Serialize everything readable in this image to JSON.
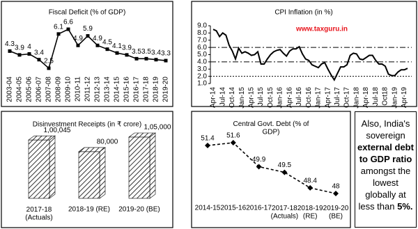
{
  "chart_data": [
    {
      "type": "line",
      "title": "Fiscal Deficit (% of GDP)",
      "categories": [
        "2003-04",
        "2004-05",
        "2005-06",
        "2006-07",
        "2007-08",
        "2008-09",
        "2009-10",
        "2010-11",
        "2011-12",
        "2012-13",
        "2013-14",
        "2014-15",
        "2015-16",
        "2016-17",
        "2017-18",
        "2018-19",
        "2019-20"
      ],
      "values": [
        4.3,
        3.9,
        4,
        3.4,
        2.5,
        6.1,
        6.6,
        4.9,
        5.9,
        4.9,
        4.5,
        4.1,
        3.9,
        3.5,
        3.5,
        3.4,
        3.3
      ],
      "color": "#000000",
      "marker": "square",
      "data_labels": true
    },
    {
      "type": "line",
      "title": "CPI Inflation (in %)",
      "annotation": "www.taxguru.in",
      "categories": [
        "Apr-14",
        null,
        null,
        "Jul-14",
        null,
        null,
        "Oct-14",
        null,
        null,
        "Jan-15",
        null,
        null,
        "Apr-15",
        null,
        null,
        "Jul-15",
        null,
        null,
        "Oct-15",
        null,
        null,
        "Jan-16",
        null,
        null,
        "Apr-16",
        null,
        null,
        "Jul-16",
        null,
        null,
        "Oct-16",
        null,
        null,
        "Jan-17",
        null,
        null,
        "Apr-17",
        null,
        null,
        "Jul-17",
        null,
        null,
        "Oct-17",
        null,
        null,
        "Jan-18",
        null,
        null,
        "Apr-18",
        null,
        null,
        "Jul-18",
        null,
        null,
        "Oct18",
        null,
        null,
        "Jan-19",
        null,
        null,
        "Apr-19",
        null
      ],
      "values": [
        8.5,
        8.3,
        7.5,
        8.0,
        7.7,
        6.3,
        5.5,
        4.4,
        5.9,
        5.2,
        5.4,
        5.2,
        4.9,
        5.0,
        5.4,
        3.7,
        3.7,
        4.4,
        5.0,
        5.4,
        5.6,
        5.7,
        5.2,
        4.8,
        5.5,
        5.8,
        5.8,
        6.1,
        5.1,
        4.4,
        4.2,
        3.6,
        3.4,
        3.2,
        3.7,
        3.9,
        3.0,
        2.2,
        1.5,
        2.4,
        3.3,
        3.3,
        3.6,
        4.9,
        5.2,
        5.1,
        4.4,
        4.3,
        4.6,
        4.9,
        4.9,
        4.2,
        3.7,
        3.7,
        3.4,
        2.3,
        2.1,
        2.1,
        2.6,
        2.9,
        2.9,
        3.1
      ],
      "color": "#000000",
      "ylim": [
        1,
        9
      ],
      "yticks": [
        {
          "value": 1,
          "label": "1.0"
        },
        {
          "value": 2,
          "label": "2.0"
        },
        {
          "value": 3,
          "label": "3.0"
        },
        {
          "value": 4,
          "label": "4.0"
        },
        {
          "value": 5,
          "label": "5.0"
        },
        {
          "value": 6,
          "label": "6.0"
        },
        {
          "value": 7,
          "label": "7.0"
        },
        {
          "value": 8,
          "label": "8.0"
        },
        {
          "value": 9,
          "label": "9.0"
        }
      ],
      "reference_lines": [
        6,
        4,
        2
      ],
      "reference_styles": [
        "dash-dot",
        "dash-dot",
        "dotted"
      ]
    },
    {
      "type": "bar",
      "title": "Disinvestment Receipts (in ₹ crore)",
      "categories": [
        "2017-18\n(Actuals)",
        "2018-19 (RE)",
        "2019-20 (BE)"
      ],
      "values": [
        100045,
        80000,
        105000
      ],
      "value_labels": [
        "1,00,045",
        "80,000",
        "1,05,000"
      ],
      "color": "#ffffff",
      "pattern": "hatch"
    },
    {
      "type": "line",
      "title": "Central Govt. Debt (% of\nGDP)",
      "categories": [
        "2014-15",
        "2015-16",
        "2016-17",
        "2017-18\n(Actuals)",
        "2018-19\n(RE)",
        "2019-20\n(BE)"
      ],
      "values": [
        51.4,
        51.6,
        49.9,
        49.5,
        48.4,
        48
      ],
      "color": "#000000",
      "line_style": "dashed",
      "marker": "diamond",
      "data_labels": true
    }
  ],
  "note": [
    "Also, India's sovereign",
    "external debt to GDP ratio",
    "amongst the lowest globally at less than",
    "5%."
  ]
}
